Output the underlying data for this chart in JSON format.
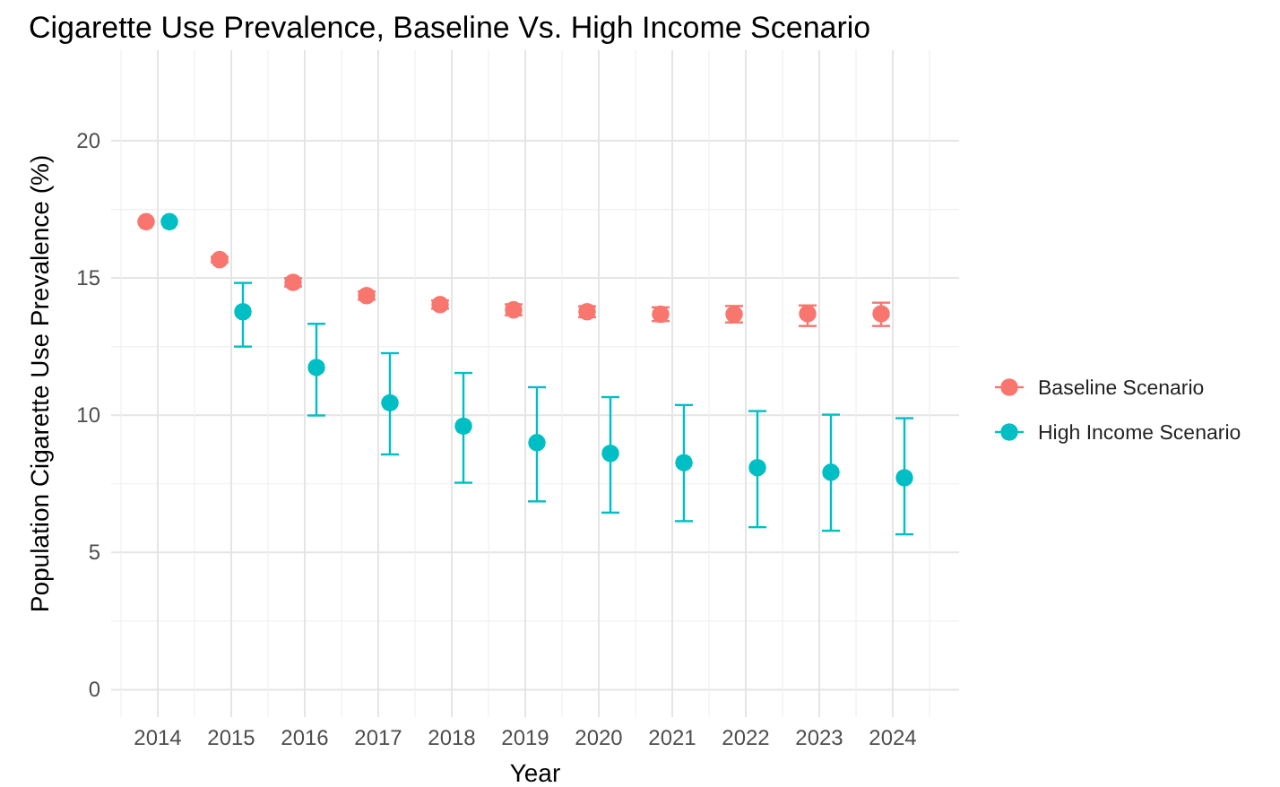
{
  "chart_data": {
    "type": "scatter",
    "title": "Cigarette Use Prevalence, Baseline Vs. High Income Scenario",
    "xlabel": "Year",
    "ylabel": "Population Cigarette Use Prevalence (%)",
    "categories": [
      "2014",
      "2015",
      "2016",
      "2017",
      "2018",
      "2019",
      "2020",
      "2021",
      "2022",
      "2023",
      "2024"
    ],
    "series": [
      {
        "name": "Baseline Scenario",
        "color": "#f8766d",
        "values": [
          17.05,
          15.67,
          14.84,
          14.36,
          14.03,
          13.84,
          13.77,
          13.68,
          13.68,
          13.7,
          13.7
        ],
        "errors": [
          null,
          0.1,
          0.15,
          0.15,
          0.15,
          0.2,
          0.2,
          0.25,
          0.3,
          [
            13.25,
            14.0
          ],
          [
            13.25,
            14.1
          ]
        ]
      },
      {
        "name": "High Income Scenario",
        "color": "#00bfc4",
        "values": [
          17.05,
          13.77,
          11.74,
          10.45,
          9.6,
          9.0,
          8.61,
          8.27,
          8.09,
          7.92,
          7.72
        ],
        "errors": [
          null,
          [
            12.5,
            14.82
          ],
          [
            9.99,
            13.33
          ],
          [
            8.57,
            12.26
          ],
          [
            7.54,
            11.54
          ],
          [
            6.86,
            11.02
          ],
          [
            6.45,
            10.66
          ],
          [
            6.14,
            10.37
          ],
          [
            5.92,
            10.15
          ],
          [
            5.79,
            10.02
          ],
          [
            5.66,
            9.89
          ]
        ]
      }
    ],
    "ylim": [
      -1.0,
      23.3
    ],
    "yticks": [
      0,
      5,
      10,
      15,
      20
    ],
    "grid": true,
    "legend": "right",
    "marker": "circle"
  }
}
